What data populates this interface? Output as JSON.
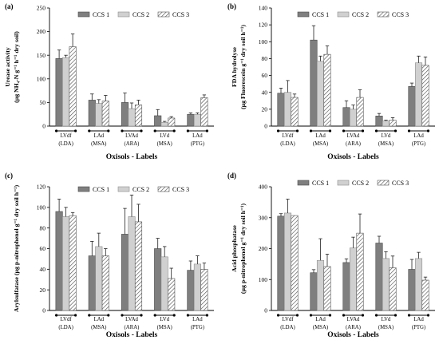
{
  "x_axis_title": "Oxisols - Labels",
  "legend": [
    {
      "label": "CCS 1",
      "color": "#7f7f7f",
      "pattern": "solid"
    },
    {
      "label": "CCS 2",
      "color": "#d0d0d0",
      "pattern": "solid"
    },
    {
      "label": "CCS 3",
      "color": "#ffffff",
      "pattern": "hatch"
    }
  ],
  "chart_data": [
    {
      "type": "bar",
      "panel": "(a)",
      "categories": [
        [
          "LVdf",
          "(LDA)"
        ],
        [
          "LAd",
          "(MSA)"
        ],
        [
          "LVAd",
          "(ARA)"
        ],
        [
          "LVd",
          "(MSA)"
        ],
        [
          "LAd",
          "(PTG)"
        ]
      ],
      "ylabel": [
        "Urease activity",
        "(µg NH₄-N g⁻¹ h⁻¹ dry soil)"
      ],
      "ylim": [
        0,
        250
      ],
      "yticks": [
        0,
        50,
        100,
        150,
        200,
        250
      ],
      "series": [
        {
          "name": "CCS 1",
          "values": [
            143,
            55,
            50,
            22,
            25
          ],
          "errors": [
            18,
            13,
            20,
            13,
            3
          ]
        },
        {
          "name": "CCS 2",
          "values": [
            145,
            48,
            37,
            8,
            25
          ],
          "errors": [
            5,
            8,
            12,
            2,
            3
          ]
        },
        {
          "name": "CCS 3",
          "values": [
            168,
            53,
            45,
            17,
            60
          ],
          "errors": [
            27,
            12,
            10,
            3,
            6
          ]
        }
      ]
    },
    {
      "type": "bar",
      "panel": "(b)",
      "categories": [
        [
          "LVdf",
          "(LDA)"
        ],
        [
          "LAd",
          "(MSA)"
        ],
        [
          "LVAd",
          "(ARA)"
        ],
        [
          "LVd",
          "(MSA)"
        ],
        [
          "LAd",
          "(PTG)"
        ]
      ],
      "ylabel": [
        "FDA hydrolyse",
        "(µg Fluorescein g⁻¹ dry soil h⁻¹)"
      ],
      "ylim": [
        0,
        140
      ],
      "yticks": [
        0,
        20,
        40,
        60,
        80,
        100,
        120,
        140
      ],
      "series": [
        {
          "name": "CCS 1",
          "values": [
            39,
            102,
            22,
            12,
            47
          ],
          "errors": [
            6,
            17,
            8,
            3,
            4
          ]
        },
        {
          "name": "CCS 2",
          "values": [
            40,
            77,
            20,
            6,
            75
          ],
          "errors": [
            14,
            6,
            5,
            1,
            8
          ]
        },
        {
          "name": "CCS 3",
          "values": [
            34,
            85,
            34,
            7,
            72
          ],
          "errors": [
            4,
            10,
            9,
            3,
            10
          ]
        }
      ]
    },
    {
      "type": "bar",
      "panel": "(c)",
      "categories": [
        [
          "LVdf",
          "(LDA)"
        ],
        [
          "LAd",
          "(MSA)"
        ],
        [
          "LVAd",
          "(ARA)"
        ],
        [
          "LVd",
          "(MSA)"
        ],
        [
          "LAd",
          "(PTG)"
        ]
      ],
      "ylabel": [
        "Arylsulfatase (µg p-nitrophenol g⁻¹ dry soil h⁻¹)"
      ],
      "ylim": [
        0,
        120
      ],
      "yticks": [
        0,
        20,
        40,
        60,
        80,
        100,
        120
      ],
      "series": [
        {
          "name": "CCS 1",
          "values": [
            96,
            53,
            74,
            60,
            39
          ],
          "errors": [
            12,
            14,
            25,
            10,
            9
          ]
        },
        {
          "name": "CCS 2",
          "values": [
            91,
            62,
            91,
            52,
            45
          ],
          "errors": [
            9,
            13,
            21,
            10,
            8
          ]
        },
        {
          "name": "CCS 3",
          "values": [
            92,
            53,
            86,
            31,
            40
          ],
          "errors": [
            3,
            7,
            17,
            10,
            6
          ]
        }
      ]
    },
    {
      "type": "bar",
      "panel": "(d)",
      "categories": [
        [
          "LVdf",
          "(LDA)"
        ],
        [
          "LAd",
          "(MSA)"
        ],
        [
          "LVAd",
          "(ARA)"
        ],
        [
          "LVd",
          "(MSA)"
        ],
        [
          "LAd",
          "(PTG)"
        ]
      ],
      "ylabel": [
        "Acid phosphatase",
        "(µg p-nitrophenol g⁻¹ dry soil h⁻¹)"
      ],
      "ylim": [
        0,
        400
      ],
      "yticks": [
        0,
        100,
        200,
        300,
        400
      ],
      "series": [
        {
          "name": "CCS 1",
          "values": [
            305,
            122,
            155,
            218,
            133
          ],
          "errors": [
            8,
            10,
            12,
            22,
            32
          ]
        },
        {
          "name": "CCS 2",
          "values": [
            315,
            162,
            202,
            168,
            168
          ],
          "errors": [
            45,
            70,
            35,
            22,
            20
          ]
        },
        {
          "name": "CCS 3",
          "values": [
            307,
            142,
            250,
            138,
            98
          ],
          "errors": [
            0,
            40,
            62,
            38,
            10
          ]
        }
      ]
    }
  ]
}
